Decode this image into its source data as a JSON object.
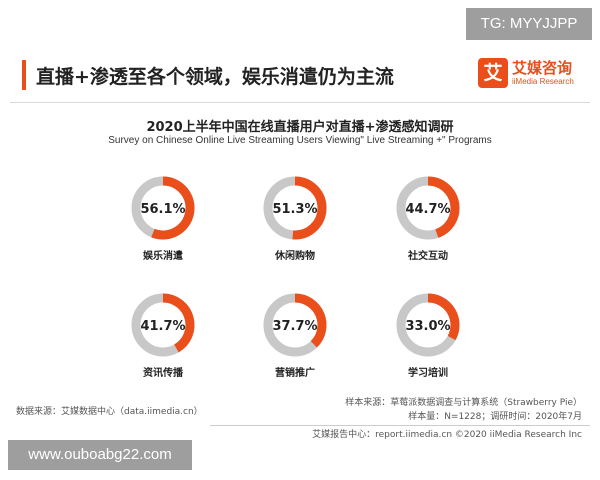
{
  "watermark_top": "TG: MYYJJPP",
  "watermark_bottom": "www.ouboabg22.com",
  "header": {
    "title": "直播+渗透至各个领域，娱乐消遣仍为主流",
    "logo_mark": "艾",
    "logo_cn": "艾媒咨询",
    "logo_en": "iiMedia Research"
  },
  "colors": {
    "accent": "#e94e1b",
    "remainder": "#c8c8c8"
  },
  "chart_data": {
    "type": "pie",
    "title": "2020上半年中国在线直播用户对直播+渗透感知调研",
    "subtitle": "Survey on Chinese Online Live Streaming Users Viewing\" Live Streaming +\" Programs",
    "categories": [
      "娱乐消遣",
      "休闲购物",
      "社交互动",
      "资讯传播",
      "营销推广",
      "学习培训"
    ],
    "values": [
      56.1,
      51.3,
      44.7,
      41.7,
      37.7,
      33.0
    ],
    "value_labels": [
      "56.1%",
      "51.3%",
      "44.7%",
      "41.7%",
      "37.7%",
      "33.0%"
    ],
    "unit": "%"
  },
  "footer": {
    "source_left": "数据来源：艾媒数据中心（data.iimedia.cn）",
    "sample_source": "样本来源：草莓派数据调查与计算系统（Strawberry Pie）",
    "sample_info": "样本量：N=1228；调研时间：2020年7月",
    "copyright": "艾媒报告中心：report.iimedia.cn  ©2020  iiMedia Research Inc"
  }
}
